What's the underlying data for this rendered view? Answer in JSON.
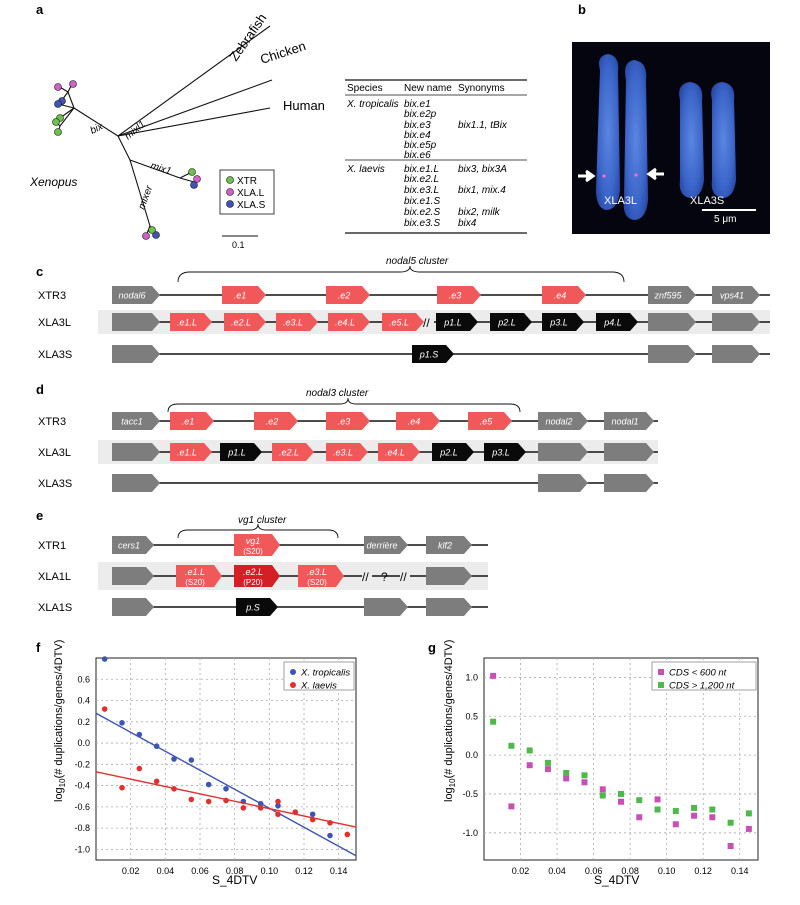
{
  "panel_labels": {
    "a": "a",
    "b": "b",
    "c": "c",
    "d": "d",
    "e": "e",
    "f": "f",
    "g": "g"
  },
  "tree": {
    "species": [
      "Zebrafish",
      "Chicken",
      "Human"
    ],
    "clades": [
      "bix",
      "mixl1",
      "mix1",
      "mixer"
    ],
    "group_label": "Xenopus",
    "legend": [
      {
        "label": "XTR",
        "color": "#6cc24a"
      },
      {
        "label": "XLA.L",
        "color": "#d161c6"
      },
      {
        "label": "XLA.S",
        "color": "#3f55b5"
      }
    ],
    "scale": "0.1"
  },
  "table": {
    "headers": [
      "Species",
      "New name",
      "Synonyms"
    ],
    "groups": [
      {
        "species": "X. tropicalis",
        "rows": [
          {
            "name": "bix.e1",
            "syn": ""
          },
          {
            "name": "bix.e2p",
            "syn": ""
          },
          {
            "name": "bix.e3",
            "syn": "bix1.1, tBix"
          },
          {
            "name": "bix.e4",
            "syn": ""
          },
          {
            "name": "bix.e5p",
            "syn": ""
          },
          {
            "name": "bix.e6",
            "syn": ""
          }
        ]
      },
      {
        "species": "X. laevis",
        "rows": [
          {
            "name": "bix.e1.L",
            "syn": "bix3, bix3A"
          },
          {
            "name": "bix.e2.L",
            "syn": ""
          },
          {
            "name": "bix.e3.L",
            "syn": "bix1, mix.4"
          },
          {
            "name": "bix.e1.S",
            "syn": ""
          },
          {
            "name": "bix.e2.S",
            "syn": "bix2, milk"
          },
          {
            "name": "bix.e3.S",
            "syn": "bix4"
          }
        ]
      }
    ]
  },
  "micrograph": {
    "left": "XLA3L",
    "right": "XLA3S",
    "scale": "5 μm"
  },
  "panel_c": {
    "cluster": "nodal5 cluster",
    "rows": [
      "XTR3",
      "XLA3L",
      "XLA3S"
    ],
    "xtr": [
      "nodal6",
      ".e1",
      ".e2",
      ".e3",
      ".e4",
      "znf595",
      "vps41"
    ],
    "la_red": [
      ".e1.L",
      ".e2.L",
      ".e3.L",
      ".e4.L",
      ".e5.L"
    ],
    "la_black": [
      "p1.L",
      "p2.L",
      "p3.L",
      "p4.L"
    ],
    "s_black": "p1.S"
  },
  "panel_d": {
    "cluster": "nodal3 cluster",
    "rows": [
      "XTR3",
      "XLA3L",
      "XLA3S"
    ],
    "xtr": [
      "tacc1",
      ".e1",
      ".e2",
      ".e3",
      ".e4",
      ".e5",
      "nodal2",
      "nodal1"
    ],
    "la": [
      ".e1.L",
      "p1.L",
      ".e2.L",
      ".e3.L",
      ".e4.L",
      "p2.L",
      "p3.L"
    ]
  },
  "panel_e": {
    "cluster": "vg1 cluster",
    "rows": [
      "XTR1",
      "XLA1L",
      "XLA1S"
    ],
    "xtr": [
      "cers1",
      "vg1",
      "(S20)",
      "derrière",
      "klf2"
    ],
    "la": [
      ".e1.L",
      "(S20)",
      ".e2.L",
      "(P20)",
      ".e3.L",
      "(S20)"
    ],
    "question": "?",
    "s_black": "p.S"
  },
  "chart_data": [
    {
      "type": "scatter",
      "xlabel": "S_4DTV",
      "ylabel": "log10(# duplications/genes/4DTV)",
      "xticks": [
        "0.02",
        "0.04",
        "0.06",
        "0.08",
        "0.10",
        "0.12",
        "0.14"
      ],
      "yticks": [
        "0.6",
        "0.4",
        "0.2",
        "0.0",
        "-0.2",
        "-0.4",
        "-0.6",
        "-0.8",
        "-1.0"
      ],
      "xlim": [
        0,
        0.15
      ],
      "ylim": [
        -1.1,
        0.8
      ],
      "series": [
        {
          "name": "X. tropicalis",
          "color": "#3f55b5",
          "x": [
            0.005,
            0.015,
            0.025,
            0.035,
            0.045,
            0.055,
            0.065,
            0.075,
            0.085,
            0.095,
            0.105,
            0.115,
            0.125,
            0.135
          ],
          "y": [
            0.79,
            0.19,
            0.08,
            -0.03,
            -0.15,
            -0.16,
            -0.39,
            -0.43,
            -0.55,
            -0.57,
            -0.59,
            -0.65,
            -0.67,
            -0.87
          ],
          "fit": [
            [
              0.0,
              0.28
            ],
            [
              0.15,
              -1.06
            ]
          ]
        },
        {
          "name": "X. laevis",
          "color": "#e0312f",
          "x": [
            0.005,
            0.015,
            0.025,
            0.035,
            0.045,
            0.055,
            0.065,
            0.075,
            0.085,
            0.095,
            0.105,
            0.105,
            0.115,
            0.125,
            0.135,
            0.145
          ],
          "y": [
            0.32,
            -0.42,
            -0.24,
            -0.36,
            -0.43,
            -0.53,
            -0.55,
            -0.54,
            -0.61,
            -0.61,
            -0.55,
            -0.67,
            -0.65,
            -0.72,
            -0.75,
            -0.86
          ],
          "fit": [
            [
              0.0,
              -0.27
            ],
            [
              0.15,
              -0.79
            ]
          ]
        }
      ]
    },
    {
      "type": "scatter",
      "xlabel": "S_4DTV",
      "ylabel": "log10(# duplications/genes/4DTV)",
      "xticks": [
        "0.02",
        "0.04",
        "0.06",
        "0.08",
        "0.10",
        "0.12",
        "0.14"
      ],
      "yticks": [
        "1.0",
        "0.5",
        "0.0",
        "-0.5",
        "-1.0"
      ],
      "xlim": [
        0,
        0.15
      ],
      "ylim": [
        -1.35,
        1.25
      ],
      "series": [
        {
          "name": "CDS < 600 nt",
          "color": "#c84fb5",
          "x": [
            0.005,
            0.015,
            0.025,
            0.035,
            0.045,
            0.055,
            0.065,
            0.075,
            0.085,
            0.095,
            0.105,
            0.115,
            0.125,
            0.135,
            0.145
          ],
          "y": [
            1.02,
            -0.66,
            -0.13,
            -0.18,
            -0.3,
            -0.35,
            -0.44,
            -0.6,
            -0.8,
            -0.57,
            -0.89,
            -0.78,
            -0.8,
            -1.17,
            -0.95
          ]
        },
        {
          "name": "CDS > 1,200 nt",
          "color": "#4fb84a",
          "x": [
            0.005,
            0.015,
            0.025,
            0.035,
            0.045,
            0.055,
            0.065,
            0.075,
            0.085,
            0.095,
            0.105,
            0.115,
            0.125,
            0.135,
            0.145
          ],
          "y": [
            0.43,
            0.12,
            0.06,
            -0.1,
            -0.23,
            -0.26,
            -0.52,
            -0.5,
            -0.58,
            -0.7,
            -0.72,
            -0.68,
            -0.7,
            -0.87,
            -0.75
          ]
        }
      ]
    }
  ]
}
